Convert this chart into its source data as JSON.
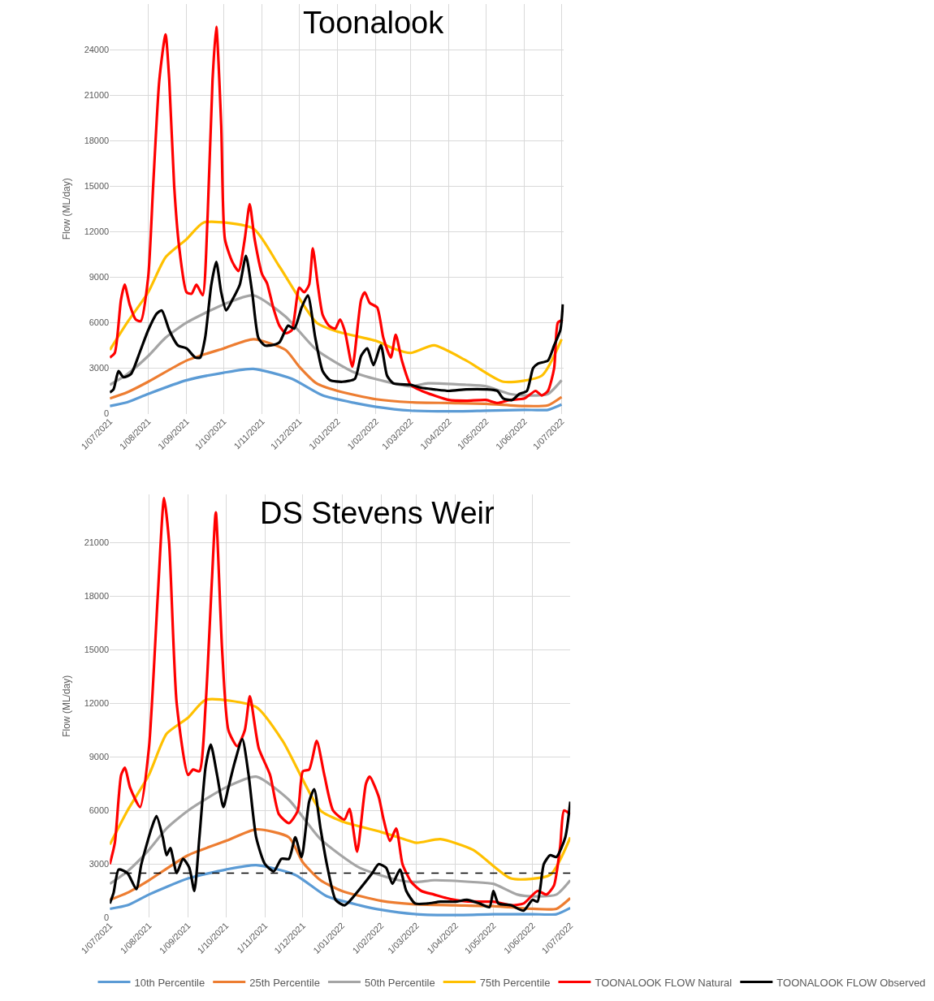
{
  "chart_data": [
    {
      "type": "line",
      "title": "Toonalook",
      "ylabel": "Flow (ML/day)",
      "grid": true,
      "legend": "bottom",
      "xlim": [
        "2021-07-01",
        "2022-07-03"
      ],
      "xticks": [
        {
          "value": "2021-07-01",
          "label": "1/07/2021"
        },
        {
          "value": "2021-08-01",
          "label": "1/08/2021"
        },
        {
          "value": "2021-09-01",
          "label": "1/09/2021"
        },
        {
          "value": "2021-10-01",
          "label": "1/10/2021"
        },
        {
          "value": "2021-11-01",
          "label": "1/11/2021"
        },
        {
          "value": "2021-12-01",
          "label": "1/12/2021"
        },
        {
          "value": "2022-01-01",
          "label": "1/01/2022"
        },
        {
          "value": "2022-02-01",
          "label": "1/02/2022"
        },
        {
          "value": "2022-03-01",
          "label": "1/03/2022"
        },
        {
          "value": "2022-04-01",
          "label": "1/04/2022"
        },
        {
          "value": "2022-05-01",
          "label": "1/05/2022"
        },
        {
          "value": "2022-06-01",
          "label": "1/06/2022"
        },
        {
          "value": "2022-07-01",
          "label": "1/07/2022"
        }
      ],
      "ylim": [
        0,
        27000
      ],
      "yticks": [
        0,
        3000,
        6000,
        9000,
        12000,
        15000,
        18000,
        21000,
        24000
      ],
      "series": [
        {
          "color": "#5b9bd5",
          "x": [
            "2021-07-01",
            "2021-07-15",
            "2021-08-01",
            "2021-09-01",
            "2021-10-01",
            "2021-10-25",
            "2021-11-25",
            "2021-12-20",
            "2022-01-15",
            "2022-02-01",
            "2022-03-01",
            "2022-04-01",
            "2022-05-01",
            "2022-06-01",
            "2022-06-20",
            "2022-07-01"
          ],
          "values": [
            500,
            750,
            1300,
            2200,
            2700,
            2950,
            2300,
            1200,
            700,
            450,
            200,
            150,
            200,
            250,
            250,
            600
          ]
        },
        {
          "color": "#ed7d31",
          "x": [
            "2021-07-01",
            "2021-07-15",
            "2021-08-01",
            "2021-09-01",
            "2021-10-01",
            "2021-10-25",
            "2021-11-20",
            "2021-12-01",
            "2021-12-15",
            "2022-01-01",
            "2022-02-01",
            "2022-03-01",
            "2022-04-01",
            "2022-05-01",
            "2022-06-01",
            "2022-06-20",
            "2022-07-01"
          ],
          "values": [
            1000,
            1400,
            2100,
            3500,
            4300,
            4900,
            4200,
            3100,
            2000,
            1500,
            950,
            750,
            700,
            650,
            500,
            550,
            1100
          ]
        },
        {
          "color": "#a5a5a5",
          "x": [
            "2021-07-01",
            "2021-07-15",
            "2021-08-01",
            "2021-08-15",
            "2021-09-01",
            "2021-10-01",
            "2021-10-25",
            "2021-11-20",
            "2021-12-15",
            "2022-01-15",
            "2022-02-15",
            "2022-03-01",
            "2022-03-15",
            "2022-04-15",
            "2022-05-01",
            "2022-05-20",
            "2022-06-01",
            "2022-06-20",
            "2022-07-01"
          ],
          "values": [
            1900,
            2600,
            3800,
            5000,
            6000,
            7200,
            7800,
            6400,
            4200,
            2700,
            2000,
            1800,
            2000,
            1900,
            1800,
            1300,
            1200,
            1300,
            2200
          ]
        },
        {
          "color": "#ffc000",
          "x": [
            "2021-07-01",
            "2021-07-15",
            "2021-08-01",
            "2021-08-15",
            "2021-09-01",
            "2021-09-15",
            "2021-10-25",
            "2021-11-15",
            "2021-12-15",
            "2022-01-01",
            "2022-02-01",
            "2022-02-15",
            "2022-03-01",
            "2022-03-20",
            "2022-04-15",
            "2022-05-15",
            "2022-06-15",
            "2022-07-01"
          ],
          "values": [
            4200,
            6000,
            8000,
            10300,
            11500,
            12600,
            12200,
            9700,
            6000,
            5400,
            4800,
            4300,
            4000,
            4500,
            3500,
            2100,
            2500,
            4900
          ]
        },
        {
          "color": "#ff0000",
          "x": [
            "2021-07-01",
            "2021-07-05",
            "2021-07-10",
            "2021-07-13",
            "2021-07-17",
            "2021-07-22",
            "2021-07-26",
            "2021-08-01",
            "2021-08-05",
            "2021-08-10",
            "2021-08-15",
            "2021-08-18",
            "2021-08-22",
            "2021-08-26",
            "2021-09-01",
            "2021-09-05",
            "2021-09-09",
            "2021-09-14",
            "2021-09-18",
            "2021-09-22",
            "2021-09-25",
            "2021-09-29",
            "2021-10-02",
            "2021-10-08",
            "2021-10-13",
            "2021-10-18",
            "2021-10-22",
            "2021-10-26",
            "2021-11-01",
            "2021-11-05",
            "2021-11-10",
            "2021-11-15",
            "2021-11-20",
            "2021-11-25",
            "2021-12-01",
            "2021-12-05",
            "2021-12-09",
            "2021-12-12",
            "2021-12-16",
            "2021-12-20",
            "2021-12-25",
            "2021-12-30",
            "2022-01-03",
            "2022-01-07",
            "2022-01-13",
            "2022-01-20",
            "2022-01-23",
            "2022-01-27",
            "2022-02-02",
            "2022-02-07",
            "2022-02-13",
            "2022-02-17",
            "2022-02-22",
            "2022-03-01",
            "2022-03-10",
            "2022-03-20",
            "2022-04-01",
            "2022-04-15",
            "2022-05-01",
            "2022-05-10",
            "2022-05-20",
            "2022-06-01",
            "2022-06-10",
            "2022-06-15",
            "2022-06-20",
            "2022-06-25",
            "2022-06-28",
            "2022-07-02"
          ],
          "values": [
            3700,
            4000,
            7500,
            8500,
            7200,
            6200,
            6100,
            9000,
            15000,
            22000,
            25000,
            22000,
            15000,
            11000,
            8000,
            7900,
            8500,
            7800,
            13000,
            22000,
            25500,
            19000,
            11500,
            10000,
            9400,
            11500,
            13800,
            11500,
            9200,
            8600,
            7000,
            5800,
            5300,
            5500,
            8300,
            8000,
            8500,
            10900,
            8500,
            6500,
            5800,
            5600,
            6200,
            5400,
            3100,
            7500,
            8000,
            7300,
            7000,
            5000,
            3700,
            5200,
            3500,
            1900,
            1500,
            1200,
            900,
            850,
            900,
            700,
            900,
            1000,
            1500,
            1200,
            1500,
            3000,
            6000,
            6200
          ]
        },
        {
          "color": "#000000",
          "x": [
            "2021-07-01",
            "2021-07-04",
            "2021-07-08",
            "2021-07-12",
            "2021-07-18",
            "2021-07-25",
            "2021-08-01",
            "2021-08-08",
            "2021-08-12",
            "2021-08-18",
            "2021-08-25",
            "2021-09-01",
            "2021-09-08",
            "2021-09-12",
            "2021-09-16",
            "2021-09-21",
            "2021-09-25",
            "2021-09-29",
            "2021-10-03",
            "2021-10-08",
            "2021-10-14",
            "2021-10-19",
            "2021-10-24",
            "2021-10-29",
            "2021-11-03",
            "2021-11-08",
            "2021-11-15",
            "2021-11-22",
            "2021-11-27",
            "2021-12-03",
            "2021-12-08",
            "2021-12-14",
            "2021-12-20",
            "2021-12-26",
            "2022-01-05",
            "2022-01-15",
            "2022-01-20",
            "2022-01-25",
            "2022-01-30",
            "2022-02-05",
            "2022-02-10",
            "2022-02-15",
            "2022-03-01",
            "2022-03-10",
            "2022-03-20",
            "2022-04-01",
            "2022-04-15",
            "2022-05-01",
            "2022-05-10",
            "2022-05-15",
            "2022-05-22",
            "2022-05-28",
            "2022-06-03",
            "2022-06-08",
            "2022-06-12",
            "2022-06-20",
            "2022-06-25",
            "2022-06-30",
            "2022-07-02"
          ],
          "values": [
            1400,
            1600,
            2800,
            2400,
            2600,
            4000,
            5500,
            6600,
            6800,
            5500,
            4500,
            4300,
            3700,
            3700,
            5000,
            8500,
            10000,
            8000,
            6800,
            7500,
            8500,
            10400,
            8000,
            5000,
            4500,
            4500,
            4700,
            5800,
            5600,
            7000,
            7800,
            5000,
            2800,
            2200,
            2100,
            2300,
            3800,
            4300,
            3200,
            4500,
            2500,
            2000,
            1900,
            1700,
            1600,
            1500,
            1600,
            1600,
            1500,
            1000,
            900,
            1300,
            1500,
            3000,
            3300,
            3500,
            4500,
            5500,
            7200
          ]
        }
      ]
    },
    {
      "type": "line",
      "title": "DS Stevens Weir",
      "ylabel": "Flow (ML/day)",
      "grid": true,
      "legend": "bottom",
      "xlim": [
        "2021-07-01",
        "2022-07-01"
      ],
      "xticks": [
        {
          "value": "2021-07-01",
          "label": "1/07/2021"
        },
        {
          "value": "2021-08-01",
          "label": "1/08/2021"
        },
        {
          "value": "2021-09-01",
          "label": "1/09/2021"
        },
        {
          "value": "2021-10-01",
          "label": "1/10/2021"
        },
        {
          "value": "2021-11-01",
          "label": "1/11/2021"
        },
        {
          "value": "2021-12-01",
          "label": "1/12/2021"
        },
        {
          "value": "2022-01-01",
          "label": "1/01/2022"
        },
        {
          "value": "2022-02-01",
          "label": "1/02/2022"
        },
        {
          "value": "2022-03-01",
          "label": "1/03/2022"
        },
        {
          "value": "2022-04-01",
          "label": "1/04/2022"
        },
        {
          "value": "2022-05-01",
          "label": "1/05/2022"
        },
        {
          "value": "2022-06-01",
          "label": "1/06/2022"
        },
        {
          "value": "2022-07-01",
          "label": "1/07/2022"
        }
      ],
      "ylim": [
        0,
        23700
      ],
      "yticks": [
        0,
        3000,
        6000,
        9000,
        12000,
        15000,
        18000,
        21000
      ],
      "ref_lines": [
        {
          "axis": "y",
          "value": 2500,
          "color": "#000000",
          "line_style": "dashed"
        }
      ],
      "series": [
        {
          "name": "10th Percentile",
          "color": "#5b9bd5",
          "x": [
            "2021-07-01",
            "2021-07-15",
            "2021-08-01",
            "2021-09-01",
            "2021-10-01",
            "2021-10-25",
            "2021-11-25",
            "2021-12-20",
            "2022-01-15",
            "2022-02-01",
            "2022-03-01",
            "2022-04-01",
            "2022-05-01",
            "2022-06-01",
            "2022-06-20",
            "2022-07-01"
          ],
          "values": [
            500,
            700,
            1300,
            2200,
            2700,
            2950,
            2400,
            1200,
            700,
            450,
            200,
            150,
            200,
            200,
            200,
            550
          ]
        },
        {
          "name": "25th Percentile",
          "color": "#ed7d31",
          "x": [
            "2021-07-01",
            "2021-07-15",
            "2021-08-01",
            "2021-09-01",
            "2021-10-01",
            "2021-10-25",
            "2021-11-20",
            "2021-12-01",
            "2021-12-15",
            "2022-01-01",
            "2022-02-01",
            "2022-03-01",
            "2022-04-01",
            "2022-05-01",
            "2022-06-01",
            "2022-06-20",
            "2022-07-01"
          ],
          "values": [
            1000,
            1400,
            2100,
            3500,
            4300,
            4950,
            4500,
            3100,
            2100,
            1500,
            950,
            750,
            700,
            650,
            500,
            500,
            1100
          ]
        },
        {
          "name": "50th Percentile",
          "color": "#a5a5a5",
          "x": [
            "2021-07-01",
            "2021-07-15",
            "2021-08-01",
            "2021-08-15",
            "2021-09-01",
            "2021-10-01",
            "2021-10-25",
            "2021-11-20",
            "2021-12-15",
            "2022-01-15",
            "2022-02-15",
            "2022-03-01",
            "2022-03-15",
            "2022-04-15",
            "2022-05-01",
            "2022-05-20",
            "2022-06-01",
            "2022-06-20",
            "2022-07-01"
          ],
          "values": [
            1900,
            2600,
            3800,
            5000,
            6000,
            7300,
            7900,
            6600,
            4400,
            2800,
            2100,
            2000,
            2100,
            2000,
            1900,
            1300,
            1200,
            1300,
            2100
          ]
        },
        {
          "name": "75th Percentile",
          "color": "#ffc000",
          "x": [
            "2021-07-01",
            "2021-07-15",
            "2021-08-01",
            "2021-08-15",
            "2021-09-01",
            "2021-09-15",
            "2021-10-25",
            "2021-11-15",
            "2021-12-15",
            "2022-01-01",
            "2022-02-01",
            "2022-02-15",
            "2022-03-01",
            "2022-03-20",
            "2022-04-15",
            "2022-05-15",
            "2022-06-15",
            "2022-07-01"
          ],
          "values": [
            4100,
            6000,
            8000,
            10300,
            11200,
            12200,
            11800,
            9900,
            6000,
            5400,
            4800,
            4500,
            4200,
            4400,
            3800,
            2200,
            2400,
            4500
          ]
        },
        {
          "name": "TOONALOOK FLOW Natural",
          "color": "#ff0000",
          "x": [
            "2021-07-01",
            "2021-07-05",
            "2021-07-10",
            "2021-07-13",
            "2021-07-17",
            "2021-07-25",
            "2021-08-01",
            "2021-08-08",
            "2021-08-13",
            "2021-08-17",
            "2021-08-23",
            "2021-09-01",
            "2021-09-05",
            "2021-09-10",
            "2021-09-15",
            "2021-09-20",
            "2021-09-23",
            "2021-09-28",
            "2021-10-03",
            "2021-10-10",
            "2021-10-16",
            "2021-10-20",
            "2021-10-27",
            "2021-11-05",
            "2021-11-12",
            "2021-11-20",
            "2021-11-27",
            "2021-12-01",
            "2021-12-06",
            "2021-12-12",
            "2021-12-18",
            "2021-12-25",
            "2022-01-03",
            "2022-01-07",
            "2022-01-13",
            "2022-01-20",
            "2022-01-23",
            "2022-01-30",
            "2022-02-03",
            "2022-02-08",
            "2022-02-13",
            "2022-02-18",
            "2022-02-25",
            "2022-03-05",
            "2022-03-15",
            "2022-03-25",
            "2022-04-05",
            "2022-04-20",
            "2022-05-01",
            "2022-05-15",
            "2022-05-25",
            "2022-06-05",
            "2022-06-12",
            "2022-06-18",
            "2022-06-23",
            "2022-06-26",
            "2022-07-01"
          ],
          "values": [
            3000,
            4200,
            8000,
            8400,
            7300,
            6200,
            9500,
            18000,
            23500,
            21000,
            12000,
            8000,
            8300,
            8200,
            12000,
            19000,
            22700,
            15000,
            10500,
            9600,
            10500,
            12400,
            9500,
            8000,
            5800,
            5300,
            6000,
            8200,
            8300,
            9900,
            8000,
            6000,
            5500,
            6100,
            3700,
            7500,
            7900,
            6800,
            5500,
            4300,
            5000,
            3000,
            2000,
            1500,
            1300,
            1100,
            950,
            900,
            900,
            700,
            800,
            1500,
            1300,
            1800,
            4000,
            6000,
            5800
          ]
        },
        {
          "name": "TOONALOOK FLOW Observed",
          "color": "#000000",
          "x": [
            "2021-07-01",
            "2021-07-04",
            "2021-07-08",
            "2021-07-15",
            "2021-07-22",
            "2021-07-26",
            "2021-08-03",
            "2021-08-07",
            "2021-08-12",
            "2021-08-15",
            "2021-08-18",
            "2021-08-23",
            "2021-08-28",
            "2021-09-02",
            "2021-09-06",
            "2021-09-10",
            "2021-09-15",
            "2021-09-19",
            "2021-09-24",
            "2021-09-29",
            "2021-10-03",
            "2021-10-08",
            "2021-10-14",
            "2021-10-19",
            "2021-10-25",
            "2021-11-01",
            "2021-11-08",
            "2021-11-14",
            "2021-11-20",
            "2021-11-25",
            "2021-11-30",
            "2021-12-06",
            "2021-12-10",
            "2021-12-15",
            "2021-12-20",
            "2021-12-27",
            "2022-01-03",
            "2022-01-08",
            "2022-01-15",
            "2022-01-25",
            "2022-01-30",
            "2022-02-05",
            "2022-02-10",
            "2022-02-16",
            "2022-02-21",
            "2022-02-28",
            "2022-03-10",
            "2022-03-20",
            "2022-04-01",
            "2022-04-10",
            "2022-04-20",
            "2022-04-28",
            "2022-05-01",
            "2022-05-05",
            "2022-05-15",
            "2022-05-25",
            "2022-06-01",
            "2022-06-05",
            "2022-06-10",
            "2022-06-15",
            "2022-06-20",
            "2022-06-27",
            "2022-07-01"
          ],
          "values": [
            800,
            1400,
            2700,
            2500,
            1600,
            3000,
            5000,
            5700,
            4500,
            3500,
            3900,
            2500,
            3300,
            2800,
            1500,
            4500,
            8500,
            9700,
            8000,
            6200,
            7300,
            8700,
            10000,
            8000,
            4500,
            3000,
            2600,
            3300,
            3300,
            4500,
            3400,
            6500,
            7200,
            5000,
            3000,
            1000,
            700,
            1000,
            1600,
            2500,
            3000,
            2800,
            1900,
            2700,
            1500,
            800,
            800,
            900,
            900,
            1000,
            800,
            600,
            1500,
            800,
            700,
            400,
            1000,
            900,
            3000,
            3500,
            3400,
            4500,
            6500
          ]
        }
      ]
    }
  ]
}
